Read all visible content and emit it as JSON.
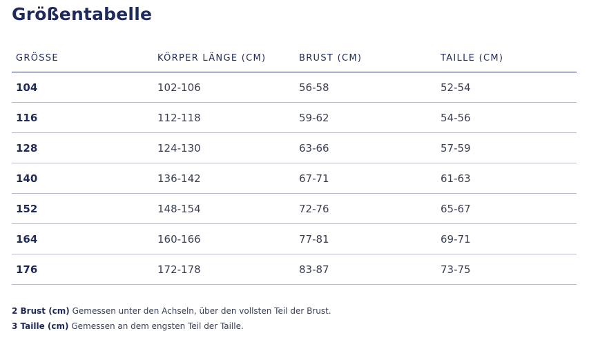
{
  "title": "Größentabelle",
  "table": {
    "headers": [
      "GRÖSSE",
      "KÖRPER LÄNGE (CM)",
      "BRUST (CM)",
      "TAILLE (CM)"
    ],
    "rows": [
      [
        "104",
        "102-106",
        "56-58",
        "52-54"
      ],
      [
        "116",
        "112-118",
        "59-62",
        "54-56"
      ],
      [
        "128",
        "124-130",
        "63-66",
        "57-59"
      ],
      [
        "140",
        "136-142",
        "67-71",
        "61-63"
      ],
      [
        "152",
        "148-154",
        "72-76",
        "65-67"
      ],
      [
        "164",
        "160-166",
        "77-81",
        "69-71"
      ],
      [
        "176",
        "172-178",
        "83-87",
        "73-75"
      ]
    ]
  },
  "notes": [
    {
      "label": "2 Brust (cm)",
      "text": " Gemessen unter den Achseln, über den vollsten Teil der Brust."
    },
    {
      "label": "3 Taille (cm)",
      "text": " Gemessen an dem engsten Teil der Taille."
    }
  ],
  "colors": {
    "primary": "#1f2a5a",
    "text": "#3a3f55",
    "row_divider": "#b7b9c7"
  }
}
